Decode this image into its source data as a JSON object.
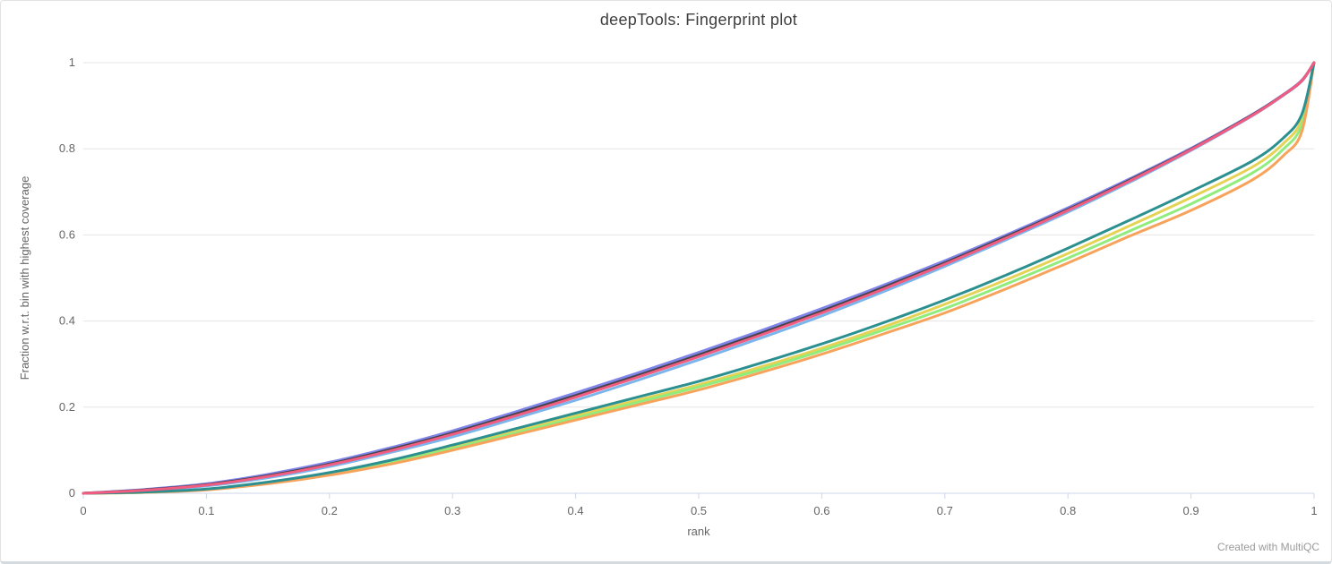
{
  "page": {
    "watermark": "Created with MultiQC"
  },
  "chart_data": {
    "type": "line",
    "title": "deepTools: Fingerprint plot",
    "xlabel": "rank",
    "ylabel": "Fraction w.r.t. bin with highest coverage",
    "xlim": [
      0,
      1
    ],
    "ylim": [
      0,
      1
    ],
    "grid": "horizontal",
    "legend": "none",
    "x_ticks": [
      "0",
      "0.1",
      "0.2",
      "0.3",
      "0.4",
      "0.5",
      "0.6",
      "0.7",
      "0.8",
      "0.9",
      "1"
    ],
    "y_ticks": [
      "0",
      "0.2",
      "0.4",
      "0.6",
      "0.8",
      "1"
    ],
    "colors": {
      "axis_line": "#ccd6eb",
      "gridline": "#e6e6e6",
      "tick_text": "#666666",
      "title_text": "#3e3e3e"
    },
    "x": [
      0,
      0.05,
      0.1,
      0.15,
      0.2,
      0.25,
      0.3,
      0.35,
      0.4,
      0.45,
      0.5,
      0.55,
      0.6,
      0.65,
      0.7,
      0.75,
      0.8,
      0.85,
      0.9,
      0.95,
      0.975,
      0.99,
      1
    ],
    "series": [
      {
        "name": "light-blue",
        "color": "#7cb5ec",
        "values": [
          0,
          0.006,
          0.017,
          0.036,
          0.062,
          0.095,
          0.131,
          0.173,
          0.216,
          0.262,
          0.31,
          0.36,
          0.412,
          0.468,
          0.527,
          0.589,
          0.653,
          0.722,
          0.796,
          0.877,
          0.924,
          0.957,
          1
        ]
      },
      {
        "name": "purple",
        "color": "#8085e9",
        "values": [
          0,
          0.009,
          0.022,
          0.044,
          0.072,
          0.106,
          0.145,
          0.188,
          0.233,
          0.279,
          0.327,
          0.377,
          0.429,
          0.483,
          0.54,
          0.6,
          0.663,
          0.73,
          0.801,
          0.88,
          0.926,
          0.959,
          1
        ]
      },
      {
        "name": "dark-gray",
        "color": "#434348",
        "values": [
          0,
          0.008,
          0.02,
          0.041,
          0.068,
          0.102,
          0.14,
          0.183,
          0.227,
          0.273,
          0.321,
          0.371,
          0.423,
          0.478,
          0.535,
          0.596,
          0.659,
          0.727,
          0.799,
          0.879,
          0.925,
          0.958,
          1
        ]
      },
      {
        "name": "yellow",
        "color": "#e4d354",
        "values": [
          0,
          0.003,
          0.009,
          0.024,
          0.045,
          0.073,
          0.107,
          0.143,
          0.18,
          0.216,
          0.252,
          0.293,
          0.337,
          0.386,
          0.439,
          0.496,
          0.557,
          0.621,
          0.687,
          0.758,
          0.812,
          0.868,
          1
        ]
      },
      {
        "name": "green",
        "color": "#90ed7d",
        "values": [
          0,
          0.002,
          0.009,
          0.023,
          0.044,
          0.071,
          0.104,
          0.139,
          0.175,
          0.211,
          0.247,
          0.287,
          0.331,
          0.379,
          0.429,
          0.486,
          0.546,
          0.609,
          0.672,
          0.744,
          0.799,
          0.856,
          1
        ]
      },
      {
        "name": "orange",
        "color": "#f7a35c",
        "values": [
          0,
          0.002,
          0.008,
          0.022,
          0.042,
          0.068,
          0.1,
          0.135,
          0.17,
          0.205,
          0.24,
          0.28,
          0.323,
          0.37,
          0.419,
          0.475,
          0.535,
          0.597,
          0.657,
          0.728,
          0.784,
          0.84,
          1
        ]
      },
      {
        "name": "teal",
        "color": "#2b908f",
        "values": [
          0,
          0.003,
          0.01,
          0.026,
          0.048,
          0.077,
          0.112,
          0.149,
          0.186,
          0.223,
          0.26,
          0.302,
          0.347,
          0.396,
          0.449,
          0.507,
          0.569,
          0.634,
          0.701,
          0.772,
          0.825,
          0.88,
          1
        ]
      },
      {
        "name": "pink",
        "color": "#f15c80",
        "values": [
          0,
          0.007,
          0.019,
          0.039,
          0.066,
          0.099,
          0.137,
          0.179,
          0.223,
          0.269,
          0.317,
          0.367,
          0.419,
          0.474,
          0.532,
          0.593,
          0.657,
          0.725,
          0.798,
          0.878,
          0.925,
          0.958,
          1
        ]
      }
    ]
  }
}
